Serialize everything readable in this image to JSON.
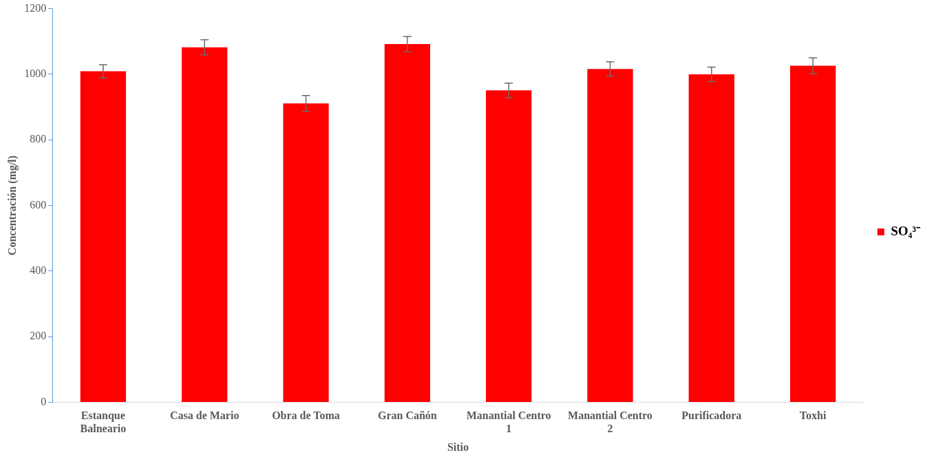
{
  "chart_data": {
    "type": "bar",
    "xlabel": "Sitio",
    "ylabel": "Concentración (mg/l)",
    "categories": [
      "Estanque Balneario",
      "Casa de Mario",
      "Obra de Toma",
      "Gran Cañón",
      "Manantial Centro 1",
      "Manantial Centro 2",
      "Purificadora",
      "Toxhi"
    ],
    "series": [
      {
        "name": "SO₄³⁻",
        "color": "#ff0000",
        "values": [
          1009,
          1082,
          911,
          1092,
          951,
          1016,
          1000,
          1026
        ],
        "errors": [
          20,
          23,
          24,
          23,
          22,
          22,
          22,
          24
        ]
      }
    ],
    "ylim": [
      0,
      1200
    ],
    "yticks": [
      0,
      200,
      400,
      600,
      800,
      1000,
      1200
    ],
    "grid": false,
    "legend": "right"
  }
}
